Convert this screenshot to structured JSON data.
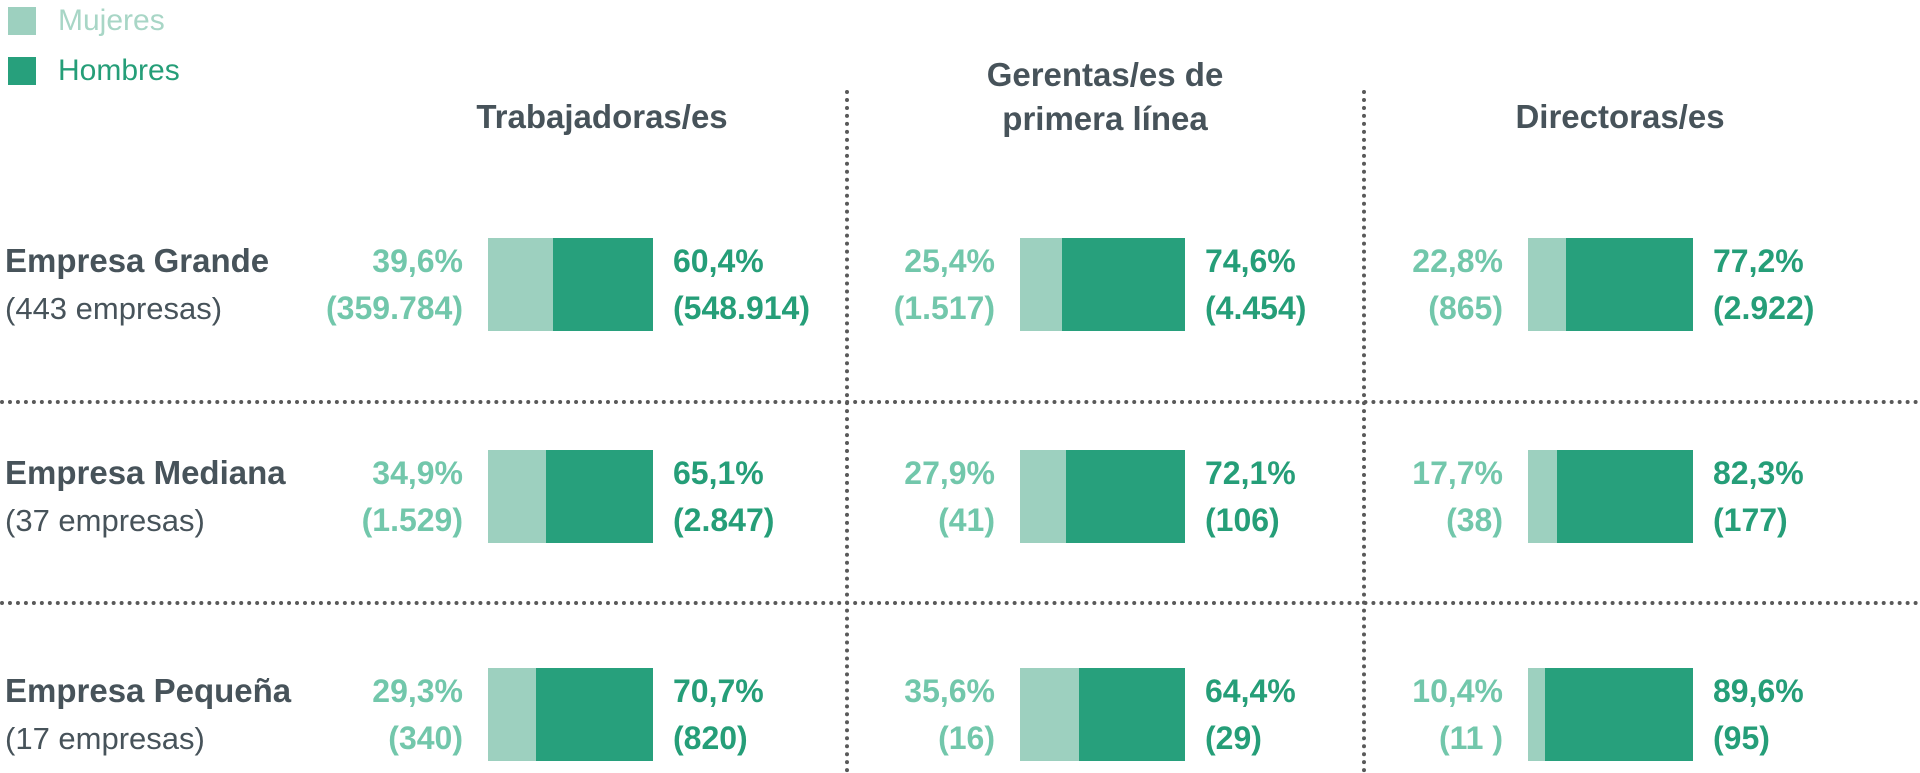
{
  "colors": {
    "women": "#9dd0bf",
    "men": "#27a07c",
    "women_text": "#72c7ab",
    "men_text": "#259e78",
    "heading_text": "#47535a",
    "dotted_line": "#595959"
  },
  "legend": {
    "items": [
      {
        "label": "Mujeres",
        "color": "#9dd0bf"
      },
      {
        "label": "Hombres",
        "color": "#27a07c"
      }
    ]
  },
  "columns": [
    {
      "label": "Trabajadoras/es"
    },
    {
      "label": "Gerentas/es de primera línea"
    },
    {
      "label": "Directoras/es"
    }
  ],
  "rows": [
    {
      "name": "Empresa Grande",
      "sub": "(443 empresas)",
      "cells": [
        {
          "w": 39.6,
          "w_pct": "39,6%",
          "w_n": "(359.784)",
          "m_pct": "60,4%",
          "m_n": "(548.914)"
        },
        {
          "w": 25.4,
          "w_pct": "25,4%",
          "w_n": "(1.517)",
          "m_pct": "74,6%",
          "m_n": "(4.454)"
        },
        {
          "w": 22.8,
          "w_pct": "22,8%",
          "w_n": "(865)",
          "m_pct": "77,2%",
          "m_n": "(2.922)"
        }
      ]
    },
    {
      "name": "Empresa Mediana",
      "sub": "(37 empresas)",
      "cells": [
        {
          "w": 34.9,
          "w_pct": "34,9%",
          "w_n": "(1.529)",
          "m_pct": "65,1%",
          "m_n": "(2.847)"
        },
        {
          "w": 27.9,
          "w_pct": "27,9%",
          "w_n": "(41)",
          "m_pct": "72,1%",
          "m_n": "(106)"
        },
        {
          "w": 17.7,
          "w_pct": "17,7%",
          "w_n": "(38)",
          "m_pct": "82,3%",
          "m_n": "(177)"
        }
      ]
    },
    {
      "name": "Empresa Pequeña",
      "sub": "(17 empresas)",
      "cells": [
        {
          "w": 29.3,
          "w_pct": "29,3%",
          "w_n": "(340)",
          "m_pct": "70,7%",
          "m_n": "(820)"
        },
        {
          "w": 35.6,
          "w_pct": "35,6%",
          "w_n": "(16)",
          "m_pct": "64,4%",
          "m_n": "(29)"
        },
        {
          "w": 10.4,
          "w_pct": "10,4%",
          "w_n": "(11 )",
          "m_pct": "89,6%",
          "m_n": "(95)"
        }
      ]
    }
  ],
  "chart_data": {
    "type": "bar",
    "subtype": "horizontal-stacked-100percent-small-multiples",
    "title": "",
    "legend_position": "top-left",
    "row_categories": [
      "Empresa Grande (443 empresas)",
      "Empresa Mediana (37 empresas)",
      "Empresa Pequeña (17 empresas)"
    ],
    "column_categories": [
      "Trabajadoras/es",
      "Gerentas/es de primera línea",
      "Directoras/es"
    ],
    "series": [
      {
        "name": "Mujeres",
        "color": "#9dd0bf",
        "pct_values_by_row": [
          [
            39.6,
            25.4,
            22.8
          ],
          [
            34.9,
            27.9,
            17.7
          ],
          [
            29.3,
            35.6,
            10.4
          ]
        ],
        "counts_by_row": [
          [
            359784,
            1517,
            865
          ],
          [
            1529,
            41,
            38
          ],
          [
            340,
            16,
            11
          ]
        ]
      },
      {
        "name": "Hombres",
        "color": "#27a07c",
        "pct_values_by_row": [
          [
            60.4,
            74.6,
            77.2
          ],
          [
            65.1,
            72.1,
            82.3
          ],
          [
            70.7,
            64.4,
            89.6
          ]
        ],
        "counts_by_row": [
          [
            548914,
            4454,
            2922
          ],
          [
            2847,
            106,
            177
          ],
          [
            820,
            29,
            95
          ]
        ]
      }
    ],
    "xlim": [
      0,
      100
    ],
    "grid": "dotted-separators-between-rows-and-columns"
  }
}
